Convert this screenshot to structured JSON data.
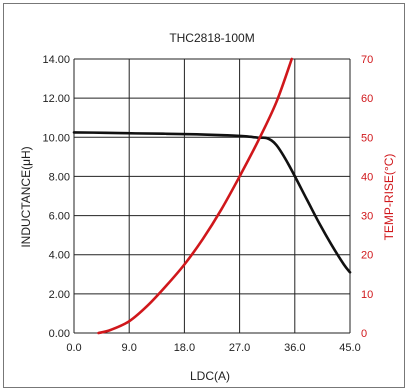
{
  "chart_data": {
    "type": "line",
    "title": "THC2818-100M",
    "xlabel": "LDC(A)",
    "ylabel_left": "INDUCTANCE(μH)",
    "ylabel_right": "TEMP-RISE(°C)",
    "xlim": [
      0,
      45
    ],
    "ylim_left": [
      0,
      14
    ],
    "ylim_right": [
      0,
      70
    ],
    "grid": true,
    "x_ticks": [
      "0.0",
      "9.0",
      "18.0",
      "27.0",
      "36.0",
      "45.0"
    ],
    "y_left_ticks": [
      "0.00",
      "2.00",
      "4.00",
      "6.00",
      "8.00",
      "10.00",
      "12.00",
      "14.00"
    ],
    "y_right_ticks": [
      "0",
      "10",
      "20",
      "30",
      "40",
      "50",
      "60",
      "70"
    ],
    "colors": {
      "inductance": "#111111",
      "temp_rise": "#d0171b",
      "grid": "#222222"
    },
    "series": [
      {
        "axis": "left",
        "x": [
          0,
          5,
          10,
          15,
          20,
          25,
          28,
          30,
          31.5,
          33,
          35,
          38,
          40,
          42,
          44,
          45
        ],
        "values": [
          10.25,
          10.23,
          10.2,
          10.18,
          10.15,
          10.1,
          10.05,
          9.98,
          9.95,
          9.6,
          8.6,
          6.8,
          5.6,
          4.5,
          3.5,
          3.1
        ]
      },
      {
        "axis": "right",
        "x": [
          4,
          6,
          9,
          12,
          15,
          18,
          21,
          24,
          27,
          30,
          33,
          35.5
        ],
        "values": [
          0,
          0.8,
          3,
          7,
          12,
          17.5,
          24,
          31.5,
          40,
          49,
          59,
          70
        ]
      }
    ]
  }
}
